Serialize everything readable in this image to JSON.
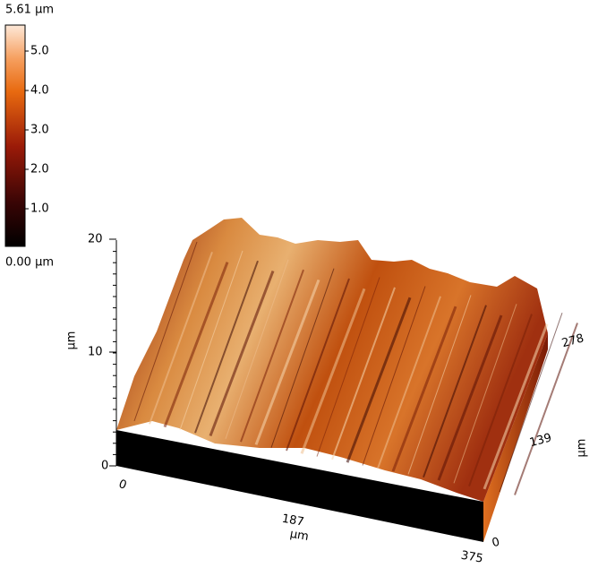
{
  "colorbar": {
    "max_label": "5.61 μm",
    "min_label": "0.00 μm",
    "ticks": [
      "5.0",
      "4.0",
      "3.0",
      "2.0",
      "1.0"
    ]
  },
  "z_axis": {
    "ticks": [
      "20",
      "10",
      "0"
    ],
    "label": "μm"
  },
  "x_axis": {
    "ticks": [
      "0",
      "187",
      "375"
    ],
    "label": "μm"
  },
  "y_axis": {
    "ticks": [
      "0",
      "139",
      "278"
    ],
    "label": "μm"
  }
}
